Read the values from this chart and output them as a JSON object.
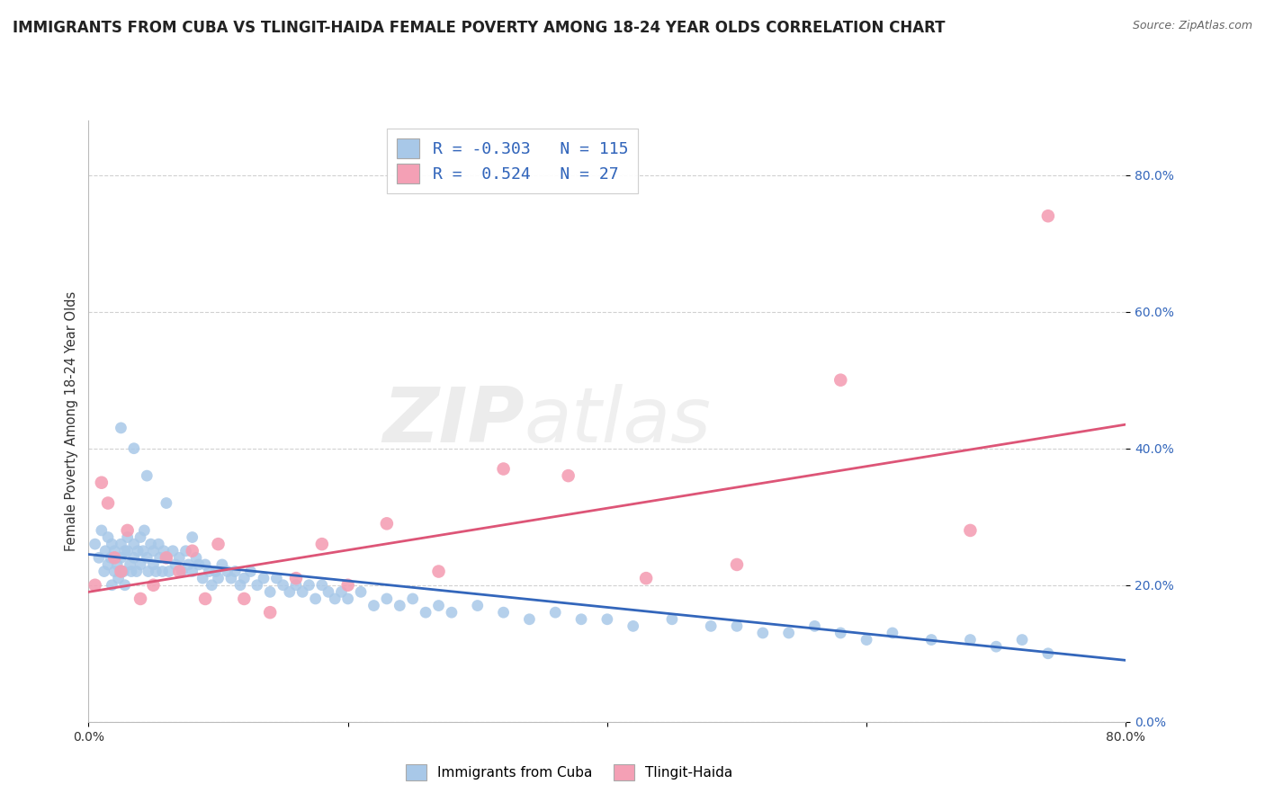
{
  "title": "IMMIGRANTS FROM CUBA VS TLINGIT-HAIDA FEMALE POVERTY AMONG 18-24 YEAR OLDS CORRELATION CHART",
  "source": "Source: ZipAtlas.com",
  "ylabel": "Female Poverty Among 18-24 Year Olds",
  "xlim": [
    0.0,
    0.8
  ],
  "ylim": [
    0.0,
    0.88
  ],
  "xticks": [
    0.0,
    0.2,
    0.4,
    0.6,
    0.8
  ],
  "yticks": [
    0.0,
    0.2,
    0.4,
    0.6,
    0.8
  ],
  "xticklabels": [
    "0.0%",
    "",
    "",
    "",
    "80.0%"
  ],
  "yticklabels": [
    "0.0%",
    "20.0%",
    "40.0%",
    "60.0%",
    "80.0%"
  ],
  "watermark_zip": "ZIP",
  "watermark_atlas": "atlas",
  "blue_color": "#a8c8e8",
  "pink_color": "#f4a0b5",
  "blue_line_color": "#3366bb",
  "pink_line_color": "#dd5577",
  "tick_color": "#3366bb",
  "R_cuba": -0.303,
  "N_cuba": 115,
  "R_tlingit": 0.524,
  "N_tlingit": 27,
  "title_fontsize": 12,
  "axis_label_fontsize": 10.5,
  "tick_fontsize": 10,
  "background_color": "#ffffff",
  "grid_color": "#cccccc",
  "cuba_x": [
    0.005,
    0.008,
    0.01,
    0.012,
    0.013,
    0.015,
    0.015,
    0.017,
    0.018,
    0.018,
    0.02,
    0.02,
    0.02,
    0.022,
    0.023,
    0.025,
    0.025,
    0.027,
    0.028,
    0.028,
    0.03,
    0.03,
    0.032,
    0.033,
    0.035,
    0.035,
    0.037,
    0.038,
    0.04,
    0.04,
    0.042,
    0.043,
    0.045,
    0.046,
    0.048,
    0.05,
    0.05,
    0.052,
    0.054,
    0.055,
    0.057,
    0.058,
    0.06,
    0.062,
    0.065,
    0.067,
    0.07,
    0.072,
    0.075,
    0.077,
    0.08,
    0.083,
    0.085,
    0.088,
    0.09,
    0.093,
    0.095,
    0.098,
    0.1,
    0.103,
    0.107,
    0.11,
    0.113,
    0.117,
    0.12,
    0.125,
    0.13,
    0.135,
    0.14,
    0.145,
    0.15,
    0.155,
    0.16,
    0.165,
    0.17,
    0.175,
    0.18,
    0.185,
    0.19,
    0.195,
    0.2,
    0.21,
    0.22,
    0.23,
    0.24,
    0.25,
    0.26,
    0.27,
    0.28,
    0.3,
    0.32,
    0.34,
    0.36,
    0.38,
    0.4,
    0.42,
    0.45,
    0.48,
    0.5,
    0.52,
    0.54,
    0.56,
    0.58,
    0.6,
    0.62,
    0.65,
    0.68,
    0.7,
    0.72,
    0.74,
    0.025,
    0.035,
    0.045,
    0.06,
    0.08
  ],
  "cuba_y": [
    0.26,
    0.24,
    0.28,
    0.22,
    0.25,
    0.27,
    0.23,
    0.24,
    0.2,
    0.26,
    0.24,
    0.22,
    0.25,
    0.23,
    0.21,
    0.26,
    0.24,
    0.22,
    0.25,
    0.2,
    0.25,
    0.27,
    0.23,
    0.22,
    0.26,
    0.24,
    0.22,
    0.25,
    0.27,
    0.23,
    0.25,
    0.28,
    0.24,
    0.22,
    0.26,
    0.25,
    0.23,
    0.22,
    0.26,
    0.24,
    0.22,
    0.25,
    0.24,
    0.22,
    0.25,
    0.23,
    0.24,
    0.22,
    0.25,
    0.23,
    0.22,
    0.24,
    0.23,
    0.21,
    0.23,
    0.22,
    0.2,
    0.22,
    0.21,
    0.23,
    0.22,
    0.21,
    0.22,
    0.2,
    0.21,
    0.22,
    0.2,
    0.21,
    0.19,
    0.21,
    0.2,
    0.19,
    0.2,
    0.19,
    0.2,
    0.18,
    0.2,
    0.19,
    0.18,
    0.19,
    0.18,
    0.19,
    0.17,
    0.18,
    0.17,
    0.18,
    0.16,
    0.17,
    0.16,
    0.17,
    0.16,
    0.15,
    0.16,
    0.15,
    0.15,
    0.14,
    0.15,
    0.14,
    0.14,
    0.13,
    0.13,
    0.14,
    0.13,
    0.12,
    0.13,
    0.12,
    0.12,
    0.11,
    0.12,
    0.1,
    0.43,
    0.4,
    0.36,
    0.32,
    0.27
  ],
  "tlingit_x": [
    0.005,
    0.01,
    0.015,
    0.02,
    0.025,
    0.03,
    0.04,
    0.05,
    0.06,
    0.07,
    0.08,
    0.09,
    0.1,
    0.12,
    0.14,
    0.16,
    0.18,
    0.2,
    0.23,
    0.27,
    0.32,
    0.37,
    0.43,
    0.5,
    0.58,
    0.68,
    0.74
  ],
  "tlingit_y": [
    0.2,
    0.35,
    0.32,
    0.24,
    0.22,
    0.28,
    0.18,
    0.2,
    0.24,
    0.22,
    0.25,
    0.18,
    0.26,
    0.18,
    0.16,
    0.21,
    0.26,
    0.2,
    0.29,
    0.22,
    0.37,
    0.36,
    0.21,
    0.23,
    0.5,
    0.28,
    0.74
  ],
  "cuba_line_x0": 0.0,
  "cuba_line_y0": 0.245,
  "cuba_line_x1": 0.8,
  "cuba_line_y1": 0.09,
  "tlingit_line_x0": 0.0,
  "tlingit_line_y0": 0.19,
  "tlingit_line_x1": 0.8,
  "tlingit_line_y1": 0.435
}
